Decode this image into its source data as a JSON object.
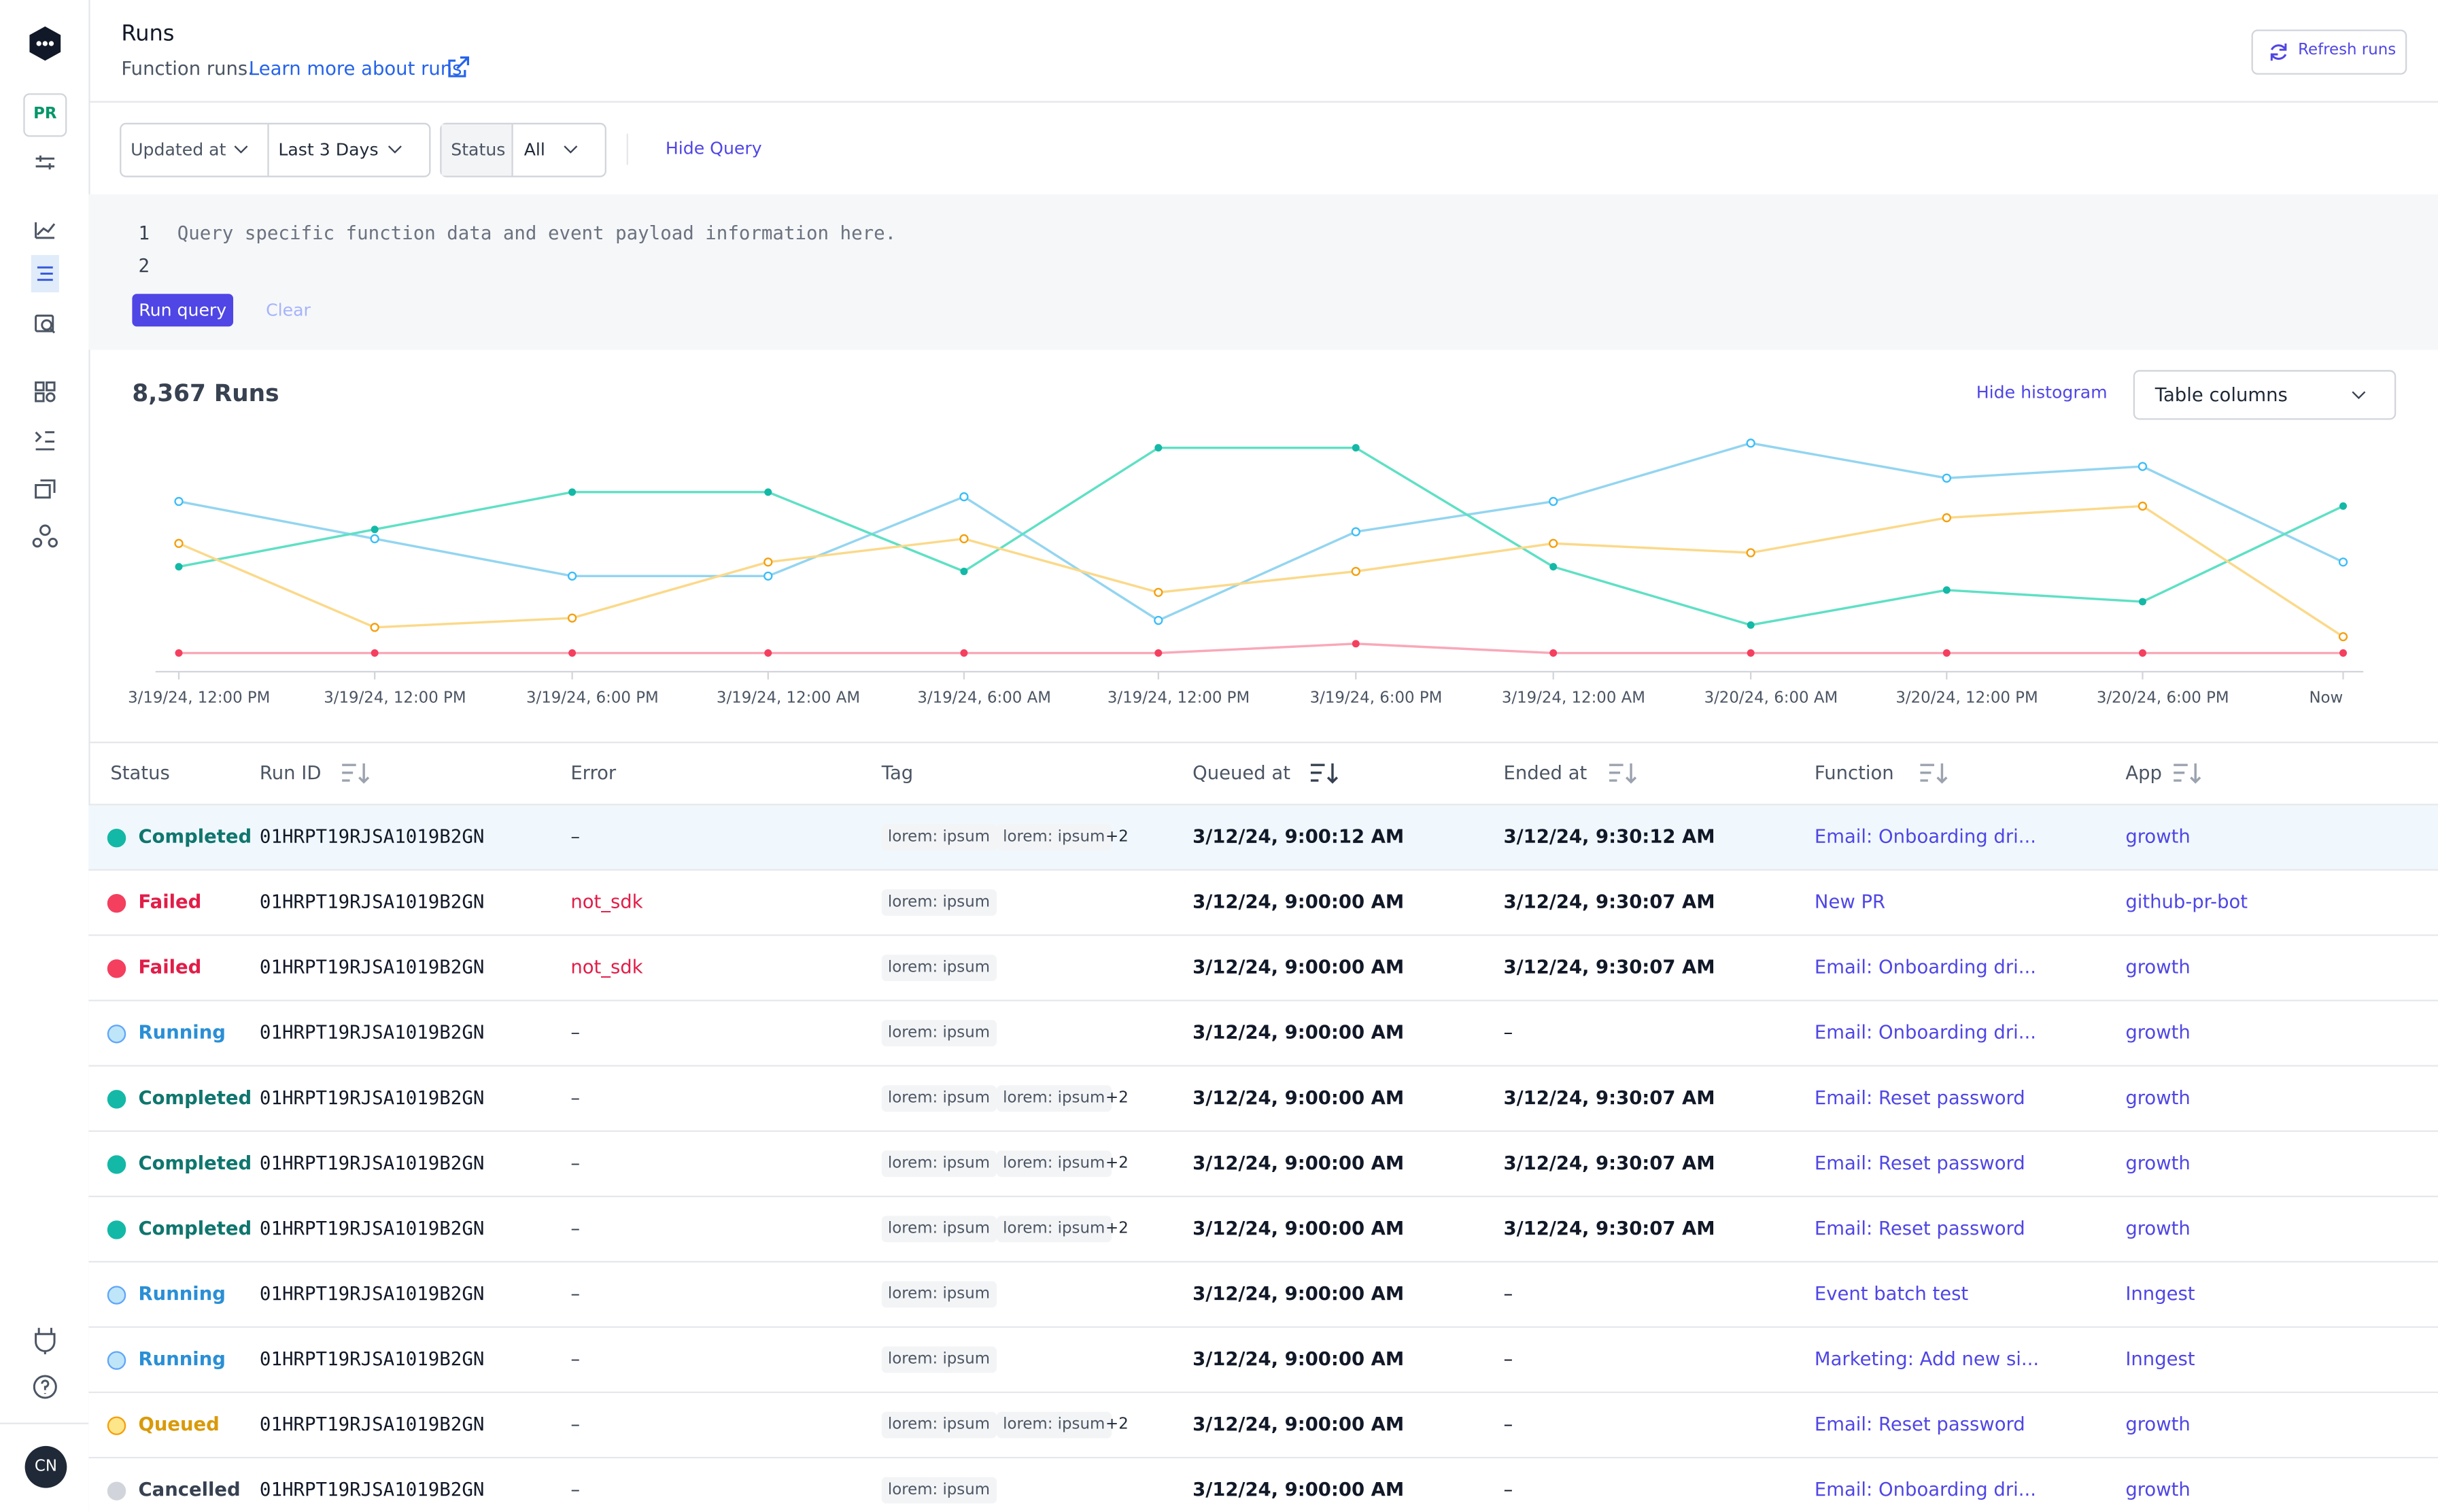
{
  "sidebar": {
    "project": "PR",
    "user": "CN"
  },
  "header": {
    "title": "Runs",
    "subtitle": "Function runs.",
    "link": "Learn more about runs",
    "refresh": "Refresh runs"
  },
  "filters": {
    "time_field": "Updated at",
    "time_range": "Last 3 Days",
    "status_label": "Status",
    "status_value": "All",
    "hide_query": "Hide Query"
  },
  "query": {
    "lines": [
      {
        "number": "1",
        "text": "Query specific function data and event payload information here."
      },
      {
        "number": "2"
      }
    ],
    "run": "Run query",
    "clear": "Clear"
  },
  "summary": {
    "count": "8,367 Runs",
    "hide_histogram": "Hide histogram",
    "table_columns": "Table columns"
  },
  "chart_data": {
    "type": "line",
    "categories": [
      "3/19/24, 12:00 PM",
      "3/19/24, 12:00 PM",
      "3/19/24, 6:00 PM",
      "3/19/24, 12:00 AM",
      "3/19/24, 6:00 AM",
      "3/19/24, 12:00 PM",
      "3/19/24, 6:00 PM",
      "3/19/24, 12:00 AM",
      "3/20/24, 6:00 AM",
      "3/20/24, 12:00 PM",
      "3/20/24, 6:00 PM",
      "Now"
    ],
    "ylim": [
      0,
      100
    ],
    "series": [
      {
        "color": "#93d5f0",
        "values": [
          73,
          57,
          41,
          41,
          75,
          22,
          60,
          73,
          98,
          83,
          88,
          47
        ]
      },
      {
        "color": "#5ee0c4",
        "values": [
          45,
          61,
          77,
          77,
          43,
          96,
          96,
          45,
          20,
          35,
          30,
          71
        ]
      },
      {
        "color": "#fbd98a",
        "values": [
          55,
          19,
          23,
          47,
          57,
          34,
          43,
          55,
          51,
          66,
          71,
          15
        ]
      },
      {
        "color": "#f9a8b8",
        "values": [
          8,
          8,
          8,
          8,
          8,
          8,
          12,
          8,
          8,
          8,
          8,
          8
        ]
      }
    ]
  },
  "table": {
    "columns": [
      "Status",
      "Run ID",
      "Error",
      "Tag",
      "Queued at",
      "Ended at",
      "Function",
      "App"
    ],
    "rows": [
      {
        "status": "Completed",
        "run_id": "01HRPT19RJSA1019B2GN",
        "error": "–",
        "tags": [
          "lorem: ipsum",
          "lorem: ipsum"
        ],
        "more": "+2",
        "queued_at": "3/12/24, 9:00:12 AM",
        "ended_at": "3/12/24, 9:30:12 AM",
        "function": "Email: Onboarding dri...",
        "app": "growth"
      },
      {
        "status": "Failed",
        "run_id": "01HRPT19RJSA1019B2GN",
        "error": "not_sdk",
        "tags": [
          "lorem: ipsum"
        ],
        "queued_at": "3/12/24, 9:00:00 AM",
        "ended_at": "3/12/24, 9:30:07 AM",
        "function": "New PR",
        "app": "github-pr-bot"
      },
      {
        "status": "Failed",
        "run_id": "01HRPT19RJSA1019B2GN",
        "error": "not_sdk",
        "tags": [
          "lorem: ipsum"
        ],
        "queued_at": "3/12/24, 9:00:00 AM",
        "ended_at": "3/12/24, 9:30:07 AM",
        "function": "Email: Onboarding dri...",
        "app": "growth"
      },
      {
        "status": "Running",
        "run_id": "01HRPT19RJSA1019B2GN",
        "error": "–",
        "tags": [
          "lorem: ipsum"
        ],
        "queued_at": "3/12/24, 9:00:00 AM",
        "ended_at": "–",
        "function": "Email: Onboarding dri...",
        "app": "growth"
      },
      {
        "status": "Completed",
        "run_id": "01HRPT19RJSA1019B2GN",
        "error": "–",
        "tags": [
          "lorem: ipsum",
          "lorem: ipsum"
        ],
        "more": "+2",
        "queued_at": "3/12/24, 9:00:00 AM",
        "ended_at": "3/12/24, 9:30:07 AM",
        "function": "Email: Reset password",
        "app": "growth"
      },
      {
        "status": "Completed",
        "run_id": "01HRPT19RJSA1019B2GN",
        "error": "–",
        "tags": [
          "lorem: ipsum",
          "lorem: ipsum"
        ],
        "more": "+2",
        "queued_at": "3/12/24, 9:00:00 AM",
        "ended_at": "3/12/24, 9:30:07 AM",
        "function": "Email: Reset password",
        "app": "growth"
      },
      {
        "status": "Completed",
        "run_id": "01HRPT19RJSA1019B2GN",
        "error": "–",
        "tags": [
          "lorem: ipsum",
          "lorem: ipsum"
        ],
        "more": "+2",
        "queued_at": "3/12/24, 9:00:00 AM",
        "ended_at": "3/12/24, 9:30:07 AM",
        "function": "Email: Reset password",
        "app": "growth"
      },
      {
        "status": "Running",
        "run_id": "01HRPT19RJSA1019B2GN",
        "error": "–",
        "tags": [
          "lorem: ipsum"
        ],
        "queued_at": "3/12/24, 9:00:00 AM",
        "ended_at": "–",
        "function": "Event batch test",
        "app": "Inngest"
      },
      {
        "status": "Running",
        "run_id": "01HRPT19RJSA1019B2GN",
        "error": "–",
        "tags": [
          "lorem: ipsum"
        ],
        "queued_at": "3/12/24, 9:00:00 AM",
        "ended_at": "–",
        "function": "Marketing: Add new si...",
        "app": "Inngest"
      },
      {
        "status": "Queued",
        "run_id": "01HRPT19RJSA1019B2GN",
        "error": "–",
        "tags": [
          "lorem: ipsum",
          "lorem: ipsum"
        ],
        "more": "+2",
        "queued_at": "3/12/24, 9:00:00 AM",
        "ended_at": "–",
        "function": "Email: Reset password",
        "app": "growth"
      },
      {
        "status": "Cancelled",
        "run_id": "01HRPT19RJSA1019B2GN",
        "error": "–",
        "tags": [
          "lorem: ipsum"
        ],
        "queued_at": "3/12/24, 9:00:00 AM",
        "ended_at": "–",
        "function": "Email: Onboarding dri...",
        "app": "growth"
      }
    ]
  }
}
